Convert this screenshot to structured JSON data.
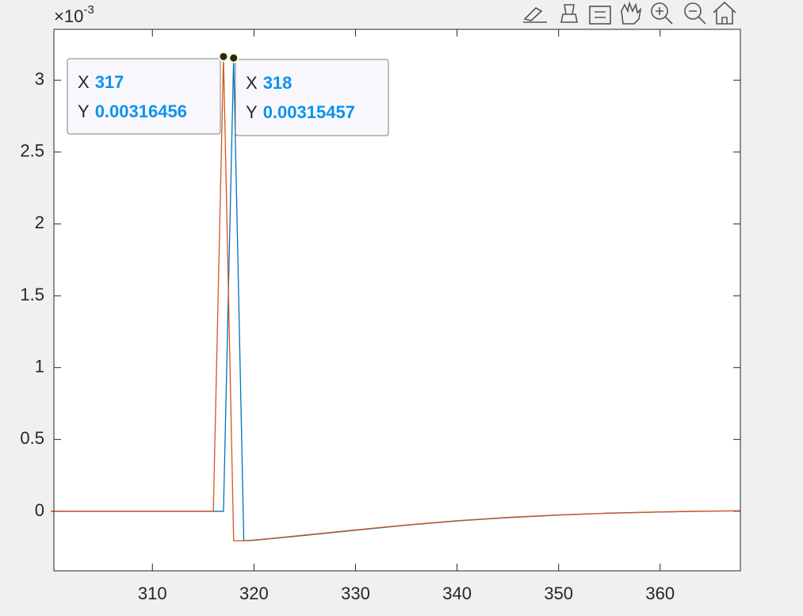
{
  "chart_data": {
    "type": "line",
    "axis_exponent": {
      "base": "×10",
      "power": "-3"
    },
    "x": [
      300,
      316,
      317,
      318,
      319,
      320,
      325,
      330,
      335,
      340,
      345,
      350,
      355,
      360,
      365,
      367.9
    ],
    "series": [
      {
        "color": "#0072bd",
        "values": [
          0,
          0,
          0,
          0.00315457,
          -0.000204,
          -0.000202,
          -0.000168,
          -0.000132,
          -9.7e-05,
          -6.7e-05,
          -4.4e-05,
          -2.6e-05,
          -1.3e-05,
          -5e-06,
          1e-06,
          3e-06
        ]
      },
      {
        "color": "#d95319",
        "values": [
          0,
          0,
          0.00316456,
          -0.000205,
          -0.000204,
          -0.0002,
          -0.000165,
          -0.000129,
          -9.5e-05,
          -6.5e-05,
          -4.2e-05,
          -2.5e-05,
          -1.2e-05,
          -4e-06,
          2e-06,
          4e-06
        ]
      }
    ],
    "xlim": [
      300.3,
      367.9
    ],
    "ylim": [
      -0.000414,
      0.003354
    ],
    "xticks": [
      310,
      320,
      330,
      340,
      350,
      360
    ],
    "yticks": [
      {
        "value": 0,
        "label": "0"
      },
      {
        "value": 0.0005,
        "label": "0.5"
      },
      {
        "value": 0.001,
        "label": "1"
      },
      {
        "value": 0.0015,
        "label": "1.5"
      },
      {
        "value": 0.002,
        "label": "2"
      },
      {
        "value": 0.0025,
        "label": "2.5"
      },
      {
        "value": 0.003,
        "label": "3"
      }
    ],
    "datatips": [
      {
        "x_label": "X",
        "x": 317,
        "y_label": "Y",
        "y": 0.00316456
      },
      {
        "x_label": "X",
        "x": 318,
        "y_label": "Y",
        "y": 0.00315457
      }
    ]
  }
}
